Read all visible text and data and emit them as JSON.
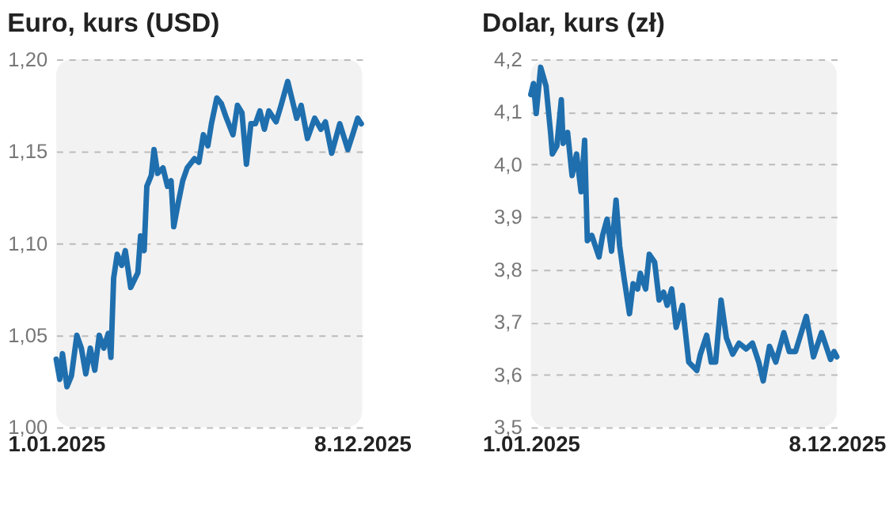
{
  "chart_data": [
    {
      "type": "line",
      "title": "Euro, kurs (USD)",
      "ylim": [
        1.0,
        1.2
      ],
      "yticks": [
        {
          "value": 1.0,
          "label": "1,00"
        },
        {
          "value": 1.05,
          "label": "1,05"
        },
        {
          "value": 1.1,
          "label": "1,10"
        },
        {
          "value": 1.15,
          "label": "1,15"
        },
        {
          "value": 1.2,
          "label": "1,20"
        }
      ],
      "xlim": [
        "2025-01-01",
        "2025-12-08"
      ],
      "xticks": [
        {
          "value": "2025-01-01",
          "label": "1.01.2025"
        },
        {
          "value": "2025-12-08",
          "label": "8.12.2025"
        }
      ],
      "grid": "y",
      "legend": false,
      "marker": "none",
      "line_style": "solid",
      "x": [
        "2025-01-01",
        "2025-01-05",
        "2025-01-08",
        "2025-01-13",
        "2025-01-18",
        "2025-01-24",
        "2025-01-29",
        "2025-02-03",
        "2025-02-08",
        "2025-02-13",
        "2025-02-18",
        "2025-02-23",
        "2025-02-28",
        "2025-03-03",
        "2025-03-06",
        "2025-03-10",
        "2025-03-15",
        "2025-03-19",
        "2025-03-25",
        "2025-04-02",
        "2025-04-05",
        "2025-04-09",
        "2025-04-12",
        "2025-04-17",
        "2025-04-20",
        "2025-04-24",
        "2025-04-30",
        "2025-05-05",
        "2025-05-09",
        "2025-05-12",
        "2025-05-17",
        "2025-05-22",
        "2025-05-27",
        "2025-06-04",
        "2025-06-09",
        "2025-06-14",
        "2025-06-19",
        "2025-06-23",
        "2025-06-29",
        "2025-07-04",
        "2025-07-09",
        "2025-07-17",
        "2025-07-22",
        "2025-07-27",
        "2025-08-01",
        "2025-08-06",
        "2025-08-11",
        "2025-08-16",
        "2025-08-21",
        "2025-08-26",
        "2025-09-03",
        "2025-09-08",
        "2025-09-16",
        "2025-09-21",
        "2025-09-26",
        "2025-10-01",
        "2025-10-08",
        "2025-10-16",
        "2025-10-23",
        "2025-10-28",
        "2025-11-04",
        "2025-11-13",
        "2025-11-22",
        "2025-11-28",
        "2025-12-03",
        "2025-12-07"
      ],
      "series": [
        {
          "color": "#1f6fae",
          "values": [
            1.037,
            1.026,
            1.04,
            1.022,
            1.028,
            1.05,
            1.043,
            1.029,
            1.043,
            1.031,
            1.05,
            1.043,
            1.051,
            1.038,
            1.081,
            1.094,
            1.088,
            1.096,
            1.076,
            1.084,
            1.104,
            1.096,
            1.131,
            1.137,
            1.151,
            1.138,
            1.141,
            1.131,
            1.134,
            1.109,
            1.122,
            1.134,
            1.141,
            1.146,
            1.144,
            1.159,
            1.153,
            1.165,
            1.179,
            1.176,
            1.169,
            1.159,
            1.175,
            1.171,
            1.143,
            1.165,
            1.165,
            1.172,
            1.162,
            1.172,
            1.166,
            1.174,
            1.188,
            1.178,
            1.168,
            1.175,
            1.157,
            1.168,
            1.162,
            1.166,
            1.149,
            1.165,
            1.151,
            1.16,
            1.168,
            1.165
          ]
        }
      ]
    },
    {
      "type": "line",
      "title": "Dolar, kurs (zł)",
      "ylim": [
        3.5,
        4.2
      ],
      "yticks": [
        {
          "value": 3.5,
          "label": "3,5"
        },
        {
          "value": 3.6,
          "label": "3,6"
        },
        {
          "value": 3.7,
          "label": "3,7"
        },
        {
          "value": 3.8,
          "label": "3,8"
        },
        {
          "value": 3.9,
          "label": "3,9"
        },
        {
          "value": 4.0,
          "label": "4,0"
        },
        {
          "value": 4.1,
          "label": "4,1"
        },
        {
          "value": 4.2,
          "label": "4,2"
        }
      ],
      "xlim": [
        "2025-01-01",
        "2025-12-08"
      ],
      "xticks": [
        {
          "value": "2025-01-01",
          "label": "1.01.2025"
        },
        {
          "value": "2025-12-08",
          "label": "8.12.2025"
        }
      ],
      "grid": "y",
      "legend": false,
      "marker": "none",
      "line_style": "solid",
      "x": [
        "2025-01-01",
        "2025-01-04",
        "2025-01-07",
        "2025-01-12",
        "2025-01-18",
        "2025-01-23",
        "2025-01-25",
        "2025-01-30",
        "2025-02-04",
        "2025-02-06",
        "2025-02-11",
        "2025-02-16",
        "2025-02-21",
        "2025-02-26",
        "2025-03-02",
        "2025-03-05",
        "2025-03-10",
        "2025-03-18",
        "2025-03-22",
        "2025-03-27",
        "2025-04-01",
        "2025-04-06",
        "2025-04-10",
        "2025-04-15",
        "2025-04-21",
        "2025-04-25",
        "2025-04-30",
        "2025-05-03",
        "2025-05-09",
        "2025-05-13",
        "2025-05-19",
        "2025-05-24",
        "2025-05-29",
        "2025-06-02",
        "2025-06-07",
        "2025-06-12",
        "2025-06-19",
        "2025-06-26",
        "2025-07-05",
        "2025-07-09",
        "2025-07-16",
        "2025-07-21",
        "2025-07-26",
        "2025-08-01",
        "2025-08-07",
        "2025-08-14",
        "2025-08-21",
        "2025-08-29",
        "2025-09-05",
        "2025-09-12",
        "2025-09-17",
        "2025-09-24",
        "2025-10-01",
        "2025-10-10",
        "2025-10-16",
        "2025-10-23",
        "2025-11-04",
        "2025-11-12",
        "2025-11-21",
        "2025-12-01",
        "2025-12-05",
        "2025-12-08"
      ],
      "series": [
        {
          "color": "#1f6fae",
          "values": [
            4.133,
            4.154,
            4.097,
            4.185,
            4.149,
            4.061,
            4.02,
            4.035,
            4.123,
            4.04,
            4.061,
            3.979,
            4.02,
            3.948,
            4.046,
            3.855,
            3.865,
            3.824,
            3.865,
            3.896,
            3.835,
            3.932,
            3.845,
            3.783,
            3.716,
            3.773,
            3.763,
            3.793,
            3.763,
            3.829,
            3.814,
            3.742,
            3.757,
            3.732,
            3.763,
            3.69,
            3.732,
            3.624,
            3.608,
            3.639,
            3.675,
            3.624,
            3.624,
            3.742,
            3.67,
            3.639,
            3.66,
            3.649,
            3.66,
            3.624,
            3.588,
            3.654,
            3.624,
            3.68,
            3.644,
            3.644,
            3.711,
            3.634,
            3.68,
            3.629,
            3.644,
            3.634
          ]
        }
      ]
    }
  ]
}
